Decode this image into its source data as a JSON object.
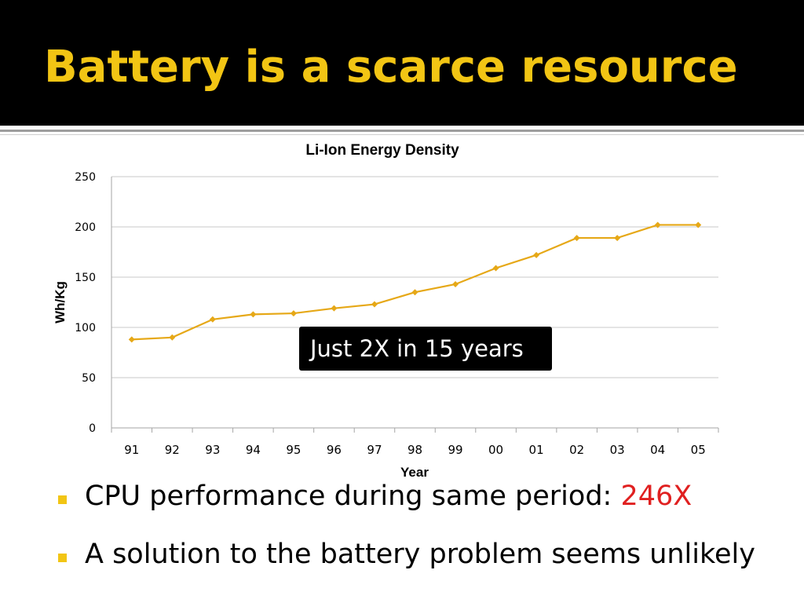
{
  "slide": {
    "title": "Battery is a scarce resource",
    "callout": "Just 2X in 15 years",
    "bullets": [
      {
        "text": "CPU performance during same period: ",
        "highlight": "246X"
      },
      {
        "text": "A solution to the battery problem seems unlikely",
        "highlight": ""
      }
    ]
  },
  "colors": {
    "header_bg": "#000000",
    "title": "#f2c514",
    "series": "#e6a817",
    "highlight": "#e02020",
    "bullet": "#f2c514"
  },
  "chart_data": {
    "type": "line",
    "title": "Li-Ion Energy Density",
    "xlabel": "Year",
    "ylabel": "Wh/Kg",
    "categories": [
      "91",
      "92",
      "93",
      "94",
      "95",
      "96",
      "97",
      "98",
      "99",
      "00",
      "01",
      "02",
      "03",
      "04",
      "05"
    ],
    "series": [
      {
        "values": [
          88,
          90,
          108,
          113,
          114,
          119,
          123,
          135,
          143,
          159,
          172,
          189,
          189,
          202,
          202
        ]
      }
    ],
    "yticks": [
      "0",
      "50",
      "100",
      "150",
      "200",
      "250"
    ],
    "ylim": [
      0,
      250
    ],
    "grid": true,
    "legend": "none"
  }
}
